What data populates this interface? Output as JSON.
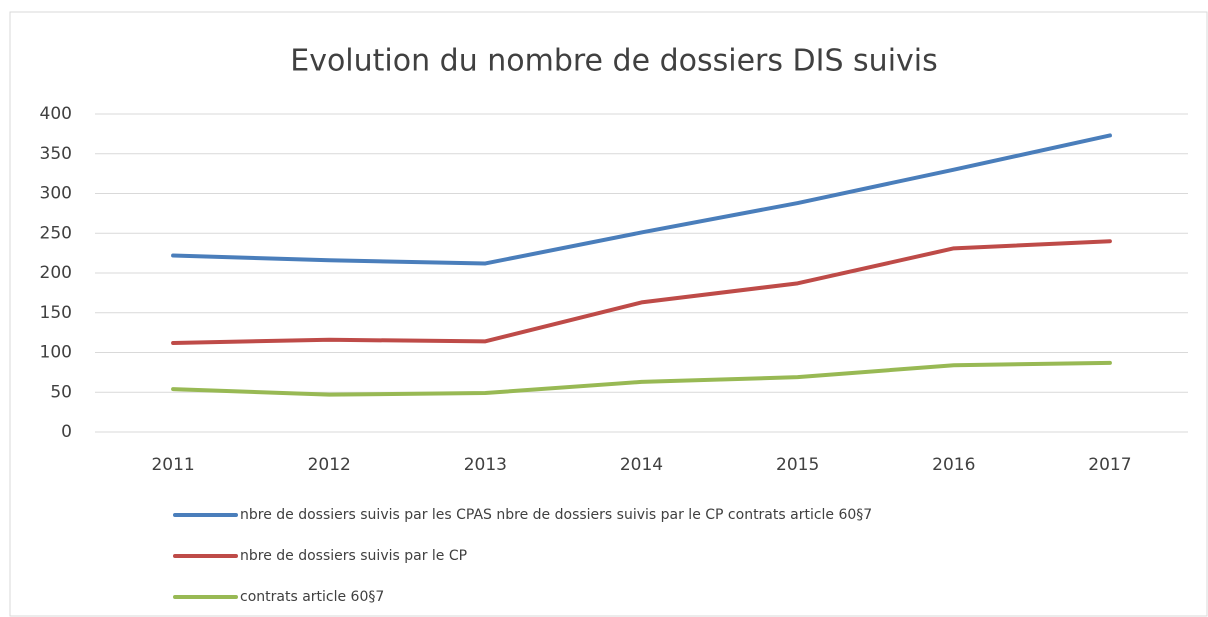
{
  "chart_data": {
    "type": "line",
    "title": "Evolution du nombre de dossiers DIS suivis",
    "categories": [
      "2011",
      "2012",
      "2013",
      "2014",
      "2015",
      "2016",
      "2017"
    ],
    "series": [
      {
        "name": "nbre de dossiers suivis par les CPAS nbre de dossiers suivis par le CP contrats article 60§7",
        "color": "#4a7ebb",
        "values": [
          222,
          216,
          212,
          251,
          288,
          330,
          373
        ]
      },
      {
        "name": "nbre de dossiers suivis par le CP",
        "color": "#be4b48",
        "values": [
          112,
          116,
          114,
          163,
          187,
          231,
          240
        ]
      },
      {
        "name": "contrats article 60§7",
        "color": "#98b954",
        "values": [
          54,
          47,
          49,
          63,
          69,
          84,
          87
        ]
      }
    ],
    "ylim": [
      0,
      400
    ],
    "yticks": [
      0,
      50,
      100,
      150,
      200,
      250,
      300,
      350,
      400
    ],
    "grid": true,
    "legend": "bottom"
  }
}
